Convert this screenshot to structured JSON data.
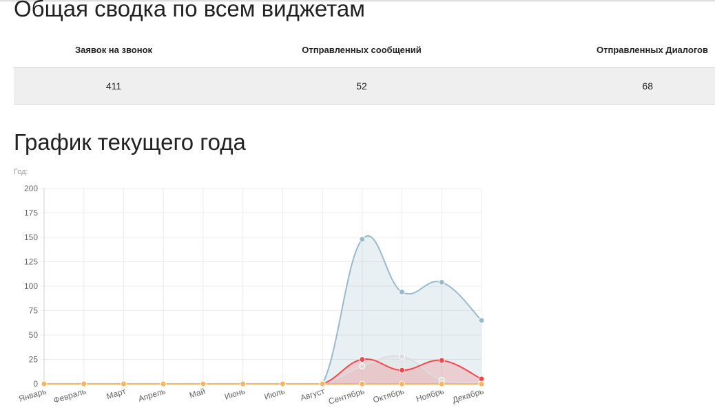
{
  "summary": {
    "title": "Общая сводка по всем виджетам",
    "columns": [
      "Заявок на звонок",
      "Отправленных сообщений",
      "Отправленных Диалогов"
    ],
    "values": [
      "411",
      "52",
      "68"
    ]
  },
  "chart_section": {
    "title": "График текущего года",
    "caption": "Год:"
  },
  "chart_data": {
    "type": "area",
    "categories": [
      "Январь",
      "Февраль",
      "Март",
      "Апрель",
      "Май",
      "Июнь",
      "Июль",
      "Август",
      "Сентябрь",
      "Октябрь",
      "Ноябрь",
      "Декабрь"
    ],
    "ylim": [
      0,
      200
    ],
    "yticks": [
      0,
      25,
      50,
      75,
      100,
      125,
      150,
      175,
      200
    ],
    "grid": true,
    "series": [
      {
        "values": [
          0,
          0,
          0,
          0,
          0,
          0,
          0,
          0,
          148,
          94,
          104,
          65
        ],
        "color": "#97bbcd",
        "fill": "rgba(151,187,205,0.22)"
      },
      {
        "values": [
          0,
          0,
          0,
          0,
          0,
          0,
          0,
          0,
          18,
          28,
          4,
          1
        ],
        "color": "#dcdcdc",
        "fill": "rgba(220,220,220,0.35)"
      },
      {
        "values": [
          0,
          0,
          0,
          0,
          0,
          0,
          0,
          0,
          25,
          14,
          24,
          5
        ],
        "color": "#f7464a",
        "fill": "rgba(247,70,74,0.20)"
      },
      {
        "values": [
          0,
          0,
          0,
          0,
          0,
          0,
          0,
          0,
          0,
          0,
          0,
          0
        ],
        "color": "#fdb45c",
        "fill": "rgba(253,180,92,0.25)"
      }
    ]
  }
}
